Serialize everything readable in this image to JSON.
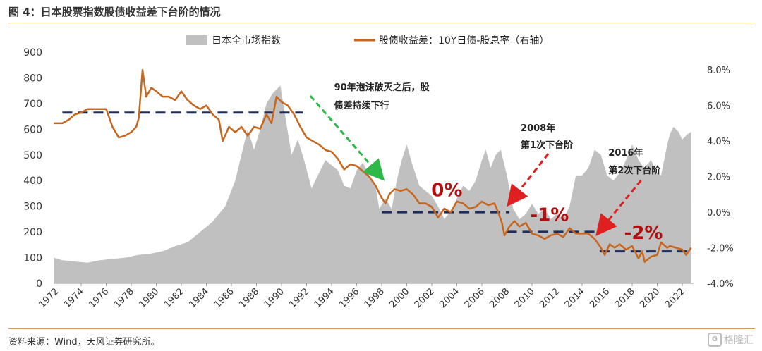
{
  "title": "图 4：日本股票指数股债收益差下台阶的情况",
  "source": "资料来源：Wind，天风证券研究所。",
  "watermark": "格隆汇",
  "colors": {
    "area": "#c0c0c0",
    "line": "#c8661e",
    "dash": "#1f2d5c",
    "green": "#2eb84a",
    "red": "#e02020",
    "callout": "#b20e0e"
  },
  "chart_data": {
    "type": "area",
    "legend": {
      "placement": "top",
      "area_label": "日本全市场指数",
      "line_label": "股债收益差：10Y日债-股息率（右轴）"
    },
    "x_ticks": [
      "1972",
      "1974",
      "1976",
      "1978",
      "1980",
      "1982",
      "1984",
      "1986",
      "1988",
      "1990",
      "1992",
      "1994",
      "1996",
      "1998",
      "2000",
      "2002",
      "2004",
      "2006",
      "2008",
      "2010",
      "2012",
      "2014",
      "2016",
      "2018",
      "2020",
      "2022"
    ],
    "y_left": {
      "min": 0,
      "max": 900,
      "ticks": [
        "0",
        "100",
        "200",
        "300",
        "400",
        "500",
        "600",
        "700",
        "800",
        "900"
      ]
    },
    "y_right": {
      "min": -4,
      "max": 9,
      "ticks": [
        "-4.0%",
        "-2.0%",
        "0.0%",
        "2.0%",
        "4.0%",
        "6.0%",
        "8.0%"
      ]
    },
    "index_series": {
      "name": "日本全市场指数",
      "points": [
        [
          1971.8,
          100
        ],
        [
          1972.5,
          90
        ],
        [
          1973.5,
          85
        ],
        [
          1974.5,
          80
        ],
        [
          1975.5,
          90
        ],
        [
          1976.5,
          95
        ],
        [
          1977.5,
          100
        ],
        [
          1978.5,
          110
        ],
        [
          1979.5,
          115
        ],
        [
          1980.5,
          125
        ],
        [
          1981.5,
          145
        ],
        [
          1982.5,
          160
        ],
        [
          1983.5,
          200
        ],
        [
          1984.5,
          240
        ],
        [
          1985.5,
          300
        ],
        [
          1986.3,
          400
        ],
        [
          1986.8,
          500
        ],
        [
          1987.3,
          600
        ],
        [
          1987.8,
          520
        ],
        [
          1988.3,
          600
        ],
        [
          1988.8,
          700
        ],
        [
          1989.3,
          740
        ],
        [
          1989.9,
          770
        ],
        [
          1990.4,
          620
        ],
        [
          1990.8,
          500
        ],
        [
          1991.3,
          560
        ],
        [
          1991.8,
          480
        ],
        [
          1992.4,
          370
        ],
        [
          1992.9,
          420
        ],
        [
          1993.5,
          480
        ],
        [
          1994,
          460
        ],
        [
          1994.5,
          440
        ],
        [
          1995,
          380
        ],
        [
          1995.5,
          370
        ],
        [
          1996,
          440
        ],
        [
          1996.5,
          470
        ],
        [
          1997,
          420
        ],
        [
          1997.5,
          380
        ],
        [
          1997.8,
          290
        ],
        [
          1998.3,
          330
        ],
        [
          1998.8,
          290
        ],
        [
          1999.2,
          400
        ],
        [
          1999.6,
          480
        ],
        [
          2000,
          540
        ],
        [
          2000.4,
          470
        ],
        [
          2001,
          380
        ],
        [
          2001.5,
          360
        ],
        [
          2002,
          340
        ],
        [
          2002.5,
          300
        ],
        [
          2003,
          250
        ],
        [
          2003.5,
          280
        ],
        [
          2004,
          330
        ],
        [
          2004.5,
          380
        ],
        [
          2005,
          360
        ],
        [
          2005.5,
          400
        ],
        [
          2006,
          480
        ],
        [
          2006.3,
          520
        ],
        [
          2006.7,
          450
        ],
        [
          2007.1,
          500
        ],
        [
          2007.5,
          520
        ],
        [
          2008,
          420
        ],
        [
          2008.5,
          290
        ],
        [
          2009,
          250
        ],
        [
          2009.5,
          270
        ],
        [
          2010,
          310
        ],
        [
          2010.5,
          270
        ],
        [
          2011,
          290
        ],
        [
          2011.5,
          250
        ],
        [
          2012,
          270
        ],
        [
          2012.5,
          250
        ],
        [
          2013,
          300
        ],
        [
          2013.5,
          420
        ],
        [
          2014,
          420
        ],
        [
          2014.5,
          450
        ],
        [
          2015,
          520
        ],
        [
          2015.5,
          500
        ],
        [
          2016,
          420
        ],
        [
          2016.5,
          400
        ],
        [
          2017,
          430
        ],
        [
          2017.5,
          480
        ],
        [
          2018,
          540
        ],
        [
          2018.5,
          480
        ],
        [
          2018.8,
          460
        ],
        [
          2019,
          450
        ],
        [
          2019.5,
          480
        ],
        [
          2020,
          430
        ],
        [
          2020.3,
          420
        ],
        [
          2020.8,
          540
        ],
        [
          2021,
          580
        ],
        [
          2021.3,
          610
        ],
        [
          2021.7,
          590
        ],
        [
          2022,
          560
        ],
        [
          2022.4,
          580
        ],
        [
          2022.7,
          590
        ]
      ]
    },
    "spread_series": {
      "name": "股债收益差：10Y日债-股息率（右轴）",
      "points": [
        [
          1971.8,
          5.0
        ],
        [
          1972.5,
          5.0
        ],
        [
          1973,
          5.2
        ],
        [
          1973.5,
          5.5
        ],
        [
          1974,
          5.6
        ],
        [
          1974.5,
          5.8
        ],
        [
          1975,
          5.8
        ],
        [
          1975.5,
          5.8
        ],
        [
          1976,
          5.8
        ],
        [
          1976.5,
          4.8
        ],
        [
          1977,
          4.2
        ],
        [
          1977.5,
          4.3
        ],
        [
          1978,
          4.5
        ],
        [
          1978.4,
          4.8
        ],
        [
          1978.6,
          5.3
        ],
        [
          1978.9,
          8.0
        ],
        [
          1979.2,
          6.5
        ],
        [
          1979.6,
          7.0
        ],
        [
          1980,
          6.8
        ],
        [
          1980.5,
          6.5
        ],
        [
          1981,
          6.5
        ],
        [
          1981.5,
          6.3
        ],
        [
          1982,
          6.8
        ],
        [
          1982.5,
          6.3
        ],
        [
          1983,
          6.0
        ],
        [
          1983.5,
          5.8
        ],
        [
          1984,
          6.0
        ],
        [
          1984.5,
          5.5
        ],
        [
          1985,
          5.2
        ],
        [
          1985.3,
          4.0
        ],
        [
          1985.8,
          4.8
        ],
        [
          1986.3,
          4.5
        ],
        [
          1986.8,
          4.8
        ],
        [
          1987.3,
          4.3
        ],
        [
          1987.8,
          4.8
        ],
        [
          1988.3,
          4.7
        ],
        [
          1988.8,
          5.5
        ],
        [
          1989.2,
          5.0
        ],
        [
          1989.6,
          6.5
        ],
        [
          1990,
          6.2
        ],
        [
          1990.5,
          6.0
        ],
        [
          1991,
          5.5
        ],
        [
          1991.5,
          4.8
        ],
        [
          1992,
          4.2
        ],
        [
          1992.5,
          4.0
        ],
        [
          1993,
          3.8
        ],
        [
          1993.5,
          3.5
        ],
        [
          1994,
          3.4
        ],
        [
          1994.5,
          3.0
        ],
        [
          1995,
          2.4
        ],
        [
          1995.5,
          2.7
        ],
        [
          1996,
          2.6
        ],
        [
          1996.5,
          2.3
        ],
        [
          1997,
          2.0
        ],
        [
          1997.5,
          1.5
        ],
        [
          1998,
          0.8
        ],
        [
          1998.3,
          0.5
        ],
        [
          1998.6,
          1.0
        ],
        [
          1999,
          1.3
        ],
        [
          1999.5,
          1.2
        ],
        [
          2000,
          1.3
        ],
        [
          2000.5,
          1.0
        ],
        [
          2001,
          0.5
        ],
        [
          2001.5,
          0.5
        ],
        [
          2002,
          0.3
        ],
        [
          2002.5,
          -0.3
        ],
        [
          2003,
          0.2
        ],
        [
          2003.5,
          0.0
        ],
        [
          2004,
          0.6
        ],
        [
          2004.5,
          0.5
        ],
        [
          2005,
          0.2
        ],
        [
          2005.5,
          0.3
        ],
        [
          2006,
          0.6
        ],
        [
          2006.5,
          0.4
        ],
        [
          2007,
          0.5
        ],
        [
          2007.3,
          0.0
        ],
        [
          2007.6,
          -0.6
        ],
        [
          2007.8,
          -1.3
        ],
        [
          2008.2,
          -0.8
        ],
        [
          2008.6,
          -0.5
        ],
        [
          2009,
          -0.8
        ],
        [
          2009.5,
          -0.6
        ],
        [
          2010,
          -1.2
        ],
        [
          2010.5,
          -1.3
        ],
        [
          2011,
          -1.5
        ],
        [
          2011.5,
          -1.3
        ],
        [
          2012,
          -1.2
        ],
        [
          2012.5,
          -1.4
        ],
        [
          2013,
          -0.9
        ],
        [
          2013.5,
          -1.2
        ],
        [
          2014,
          -1.2
        ],
        [
          2014.5,
          -1.2
        ],
        [
          2015,
          -1.5
        ],
        [
          2015.5,
          -2.0
        ],
        [
          2015.8,
          -2.4
        ],
        [
          2016.2,
          -1.8
        ],
        [
          2016.6,
          -2.0
        ],
        [
          2017,
          -1.8
        ],
        [
          2017.5,
          -2.1
        ],
        [
          2018,
          -1.9
        ],
        [
          2018.5,
          -2.6
        ],
        [
          2018.8,
          -2.2
        ],
        [
          2019,
          -2.8
        ],
        [
          2019.5,
          -2.5
        ],
        [
          2020,
          -2.4
        ],
        [
          2020.3,
          -1.7
        ],
        [
          2020.8,
          -2.0
        ],
        [
          2021,
          -1.9
        ],
        [
          2021.5,
          -2.0
        ],
        [
          2022,
          -2.1
        ],
        [
          2022.3,
          -2.4
        ],
        [
          2022.7,
          -2.0
        ]
      ]
    },
    "plateaus": [
      {
        "label": "",
        "from": 1972.5,
        "to": 1991.7,
        "y": 5.6
      },
      {
        "label": "0%",
        "from": 1998.0,
        "to": 2008.2,
        "y": 0.0
      },
      {
        "label": "-1%",
        "from": 2008.0,
        "to": 2015.0,
        "y": -1.1
      },
      {
        "label": "-2%",
        "from": 2015.4,
        "to": 2022.8,
        "y": -2.2
      }
    ],
    "annotations": [
      {
        "kind": "green-arrow",
        "text_lines": [
          "90年泡沫破灭之后，股",
          "债差持续下行"
        ]
      },
      {
        "kind": "red-arrow",
        "text_lines": [
          "2008年",
          "第1次下台阶"
        ]
      },
      {
        "kind": "red-arrow",
        "text_lines": [
          "2016年",
          "第2次下台阶"
        ]
      }
    ]
  }
}
